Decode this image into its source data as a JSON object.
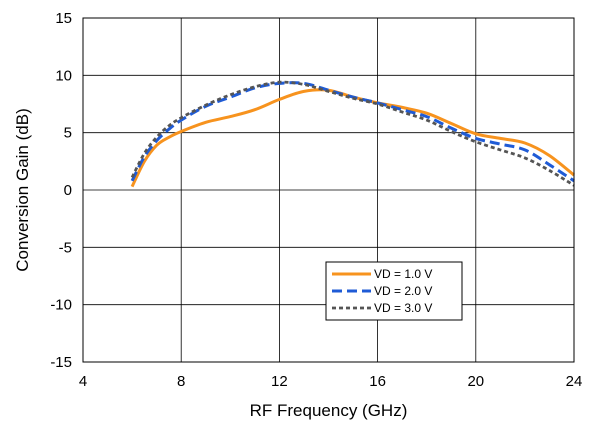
{
  "chart_data": {
    "type": "line",
    "title": "",
    "xlabel": "RF Frequency (GHz)",
    "ylabel": "Conversion Gain (dB)",
    "xlim": [
      4,
      24
    ],
    "ylim": [
      -15,
      15
    ],
    "x_ticks": [
      4,
      8,
      12,
      16,
      20,
      24
    ],
    "y_ticks": [
      15,
      10,
      5,
      0,
      -5,
      -10,
      -15
    ],
    "grid": true,
    "legend_position": "lower-right",
    "series": [
      {
        "name": "VD = 1.0 V",
        "color": "#F7931E",
        "style": "solid",
        "x": [
          6,
          6.5,
          7,
          7.5,
          8,
          9,
          10,
          11,
          12,
          13,
          14,
          15,
          16,
          17,
          18,
          19,
          20,
          21,
          22,
          23,
          24
        ],
        "y": [
          0.3,
          2.5,
          3.9,
          4.6,
          5.1,
          5.9,
          6.4,
          7.0,
          7.9,
          8.6,
          8.7,
          8.1,
          7.6,
          7.2,
          6.7,
          5.8,
          4.9,
          4.5,
          4.1,
          3.0,
          1.3
        ]
      },
      {
        "name": "VD = 2.0 V",
        "color": "#1F5BD6",
        "style": "dashed",
        "x": [
          6,
          6.5,
          7,
          7.5,
          8,
          9,
          10,
          11,
          12,
          13,
          14,
          15,
          16,
          17,
          18,
          19,
          20,
          21,
          22,
          23,
          24
        ],
        "y": [
          0.8,
          2.9,
          4.3,
          5.3,
          6.1,
          7.3,
          8.1,
          8.9,
          9.3,
          9.3,
          8.7,
          8.1,
          7.6,
          7.0,
          6.4,
          5.4,
          4.5,
          4.0,
          3.5,
          2.2,
          0.8
        ]
      },
      {
        "name": "VD = 3.0 V",
        "color": "#555555",
        "style": "dotted",
        "x": [
          6,
          6.5,
          7,
          7.5,
          8,
          9,
          10,
          11,
          12,
          13,
          14,
          15,
          16,
          17,
          18,
          19,
          20,
          21,
          22,
          23,
          24
        ],
        "y": [
          1.1,
          3.2,
          4.6,
          5.6,
          6.3,
          7.4,
          8.3,
          9.0,
          9.4,
          9.2,
          8.6,
          8.0,
          7.5,
          6.8,
          6.1,
          5.1,
          4.2,
          3.5,
          2.8,
          1.7,
          0.4
        ]
      }
    ]
  }
}
